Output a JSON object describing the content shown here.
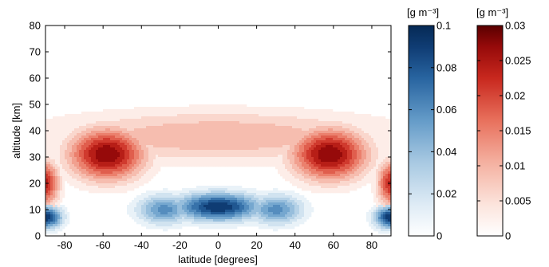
{
  "chart_data": {
    "type": "heatmap",
    "xlabel": "latitude [degrees]",
    "ylabel": "altitude [km]",
    "xlim": [
      -90,
      90
    ],
    "ylim": [
      0,
      80
    ],
    "x_ticks": [
      -80,
      -60,
      -40,
      -20,
      0,
      20,
      40,
      60,
      80
    ],
    "y_ticks": [
      0,
      10,
      20,
      30,
      40,
      50,
      60,
      70,
      80
    ],
    "grid": false,
    "fields": [
      {
        "colormap": "red",
        "unit_label": "[g m⁻³]",
        "clim": [
          0,
          0.03
        ],
        "colorbar_ticks": [
          "0",
          "0.005",
          "0.01",
          "0.015",
          "0.02",
          "0.025",
          "0.03"
        ],
        "features": [
          {
            "lat": -58,
            "alt": 31,
            "peak": 0.03,
            "lat_spread": 14,
            "alt_spread": 7
          },
          {
            "lat": 58,
            "alt": 31,
            "peak": 0.03,
            "lat_spread": 14,
            "alt_spread": 7
          },
          {
            "lat": 0,
            "alt": 38,
            "peak": 0.012,
            "lat_spread": 65,
            "alt_spread": 7
          },
          {
            "lat": -90,
            "alt": 20,
            "peak": 0.025,
            "lat_spread": 5,
            "alt_spread": 6
          },
          {
            "lat": 90,
            "alt": 20,
            "peak": 0.025,
            "lat_spread": 5,
            "alt_spread": 6
          }
        ]
      },
      {
        "colormap": "blue",
        "unit_label": "[g m⁻³]",
        "clim": [
          0,
          0.1
        ],
        "colorbar_ticks": [
          "0",
          "0.02",
          "0.04",
          "0.06",
          "0.08",
          "0.1"
        ],
        "features": [
          {
            "lat": 0,
            "alt": 11,
            "peak": 0.1,
            "lat_spread": 16,
            "alt_spread": 3.8
          },
          {
            "lat": -28,
            "alt": 10,
            "peak": 0.065,
            "lat_spread": 10,
            "alt_spread": 4
          },
          {
            "lat": 30,
            "alt": 10,
            "peak": 0.065,
            "lat_spread": 10,
            "alt_spread": 4
          },
          {
            "lat": -90,
            "alt": 7,
            "peak": 0.1,
            "lat_spread": 6,
            "alt_spread": 3
          },
          {
            "lat": 90,
            "alt": 7,
            "peak": 0.1,
            "lat_spread": 6,
            "alt_spread": 3
          }
        ]
      }
    ]
  },
  "colors": {
    "red_dark": "#5a0000",
    "blue_dark": "#062a55"
  }
}
